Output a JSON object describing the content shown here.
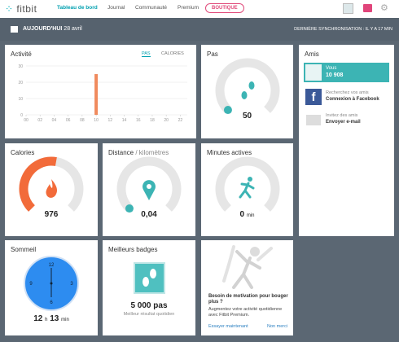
{
  "header": {
    "logo": "fitbit",
    "nav": [
      "Tableau de bord",
      "Journal",
      "Communauté",
      "Premium"
    ],
    "shop": "BOUTIQUE"
  },
  "date_bar": {
    "today": "AUJOURD'HUI",
    "date": "28 avril",
    "sync": "DERNIÈRE SYNCHRONISATION : IL Y A 17 MIN"
  },
  "activity": {
    "title": "Activité",
    "toggle": [
      "PAS",
      "CALORIES"
    ],
    "chart_data": {
      "type": "bar",
      "x": [
        10
      ],
      "values": [
        25
      ],
      "color": "#f08a5d",
      "xlim": [
        0,
        23
      ],
      "xticks": [
        {
          "value": 0,
          "label": "00"
        },
        {
          "value": 2,
          "label": "02"
        },
        {
          "value": 4,
          "label": "04"
        },
        {
          "value": 6,
          "label": "06"
        },
        {
          "value": 8,
          "label": "08"
        },
        10,
        12,
        14,
        16,
        18,
        20,
        22
      ],
      "ylim": [
        0,
        30
      ],
      "yticks": [
        0,
        10,
        20,
        30
      ],
      "grid": true
    }
  },
  "steps": {
    "title": "Pas",
    "value": 50
  },
  "calories": {
    "title": "Calories",
    "value": 976
  },
  "distance": {
    "title": "Distance",
    "unit": "/ kilomètres",
    "value": "0,04"
  },
  "minutes": {
    "title": "Minutes actives",
    "value": 0,
    "unit": "min"
  },
  "sleep": {
    "title": "Sommeil",
    "clock": [
      "12",
      "3",
      "6",
      "9"
    ],
    "hours": 12,
    "h": "h",
    "minutes": 13,
    "min": "min"
  },
  "badges": {
    "title": "Meilleurs badges",
    "value": "5 000 pas",
    "caption": "Meilleur résultat quotidien"
  },
  "premium": {
    "title": "Besoin de motivation pour bouger plus ?",
    "text": "Augmentez votre activité quotidienne avec Fitbit Premium.",
    "try": "Essayer maintenant",
    "no": "Non merci"
  },
  "friends": {
    "title": "Amis",
    "you": "Vous",
    "you_steps": "10 908",
    "fb_hint": "Recherchez vos amis",
    "fb": "Connexion à Facebook",
    "mail_hint": "Invitez des amis",
    "mail": "Envoyer e-mail"
  }
}
